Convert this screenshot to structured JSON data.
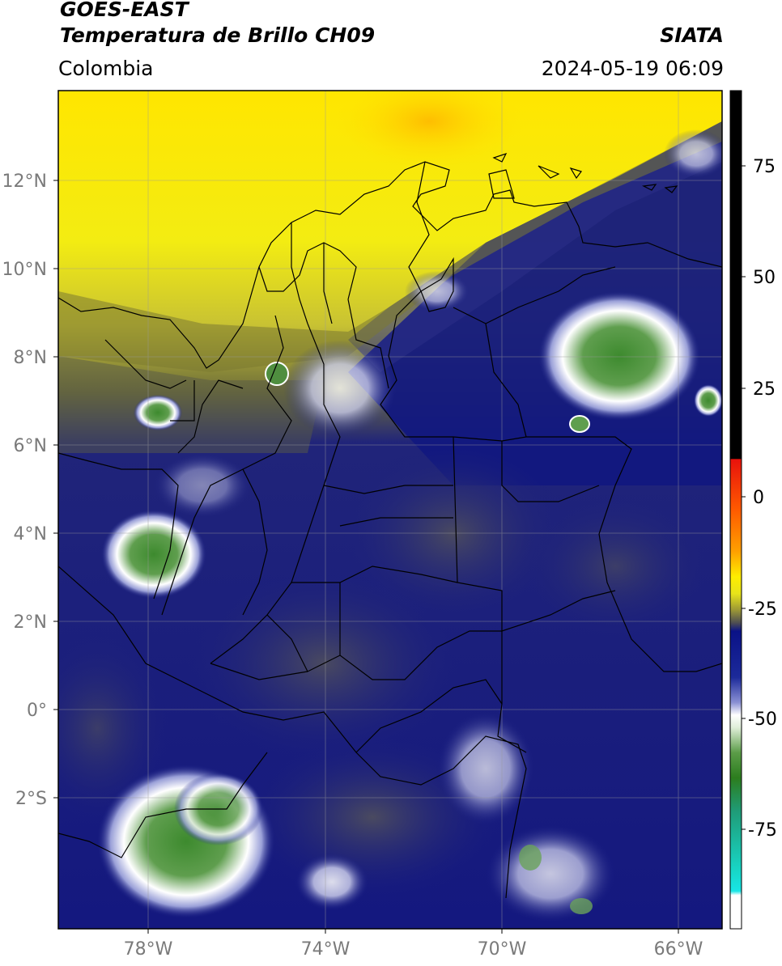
{
  "header": {
    "satellite": "GOES-EAST",
    "product": "Temperatura de Brillo CH09",
    "region": "Colombia",
    "agency": "SIATA",
    "datetime": "2024-05-19 06:09"
  },
  "map": {
    "lat_ticks": [
      "12°N",
      "10°N",
      "8°N",
      "6°N",
      "4°N",
      "2°N",
      "0°",
      "2°S"
    ],
    "lon_ticks": [
      "78°W",
      "74°W",
      "70°W",
      "66°W"
    ]
  },
  "colorbar": {
    "ticks": [
      "75",
      "50",
      "25",
      "0",
      "-25",
      "-50",
      "-75"
    ],
    "colors": {
      "black": "#000000",
      "red": "#e8120c",
      "orange": "#ff8a00",
      "yellow": "#ffee00",
      "olive": "#6e6e2a",
      "navy": "#0a1287",
      "white": "#ffffff",
      "green": "#2c7d1e",
      "teal": "#1fb79a",
      "cyan": "#18e6e6"
    }
  }
}
